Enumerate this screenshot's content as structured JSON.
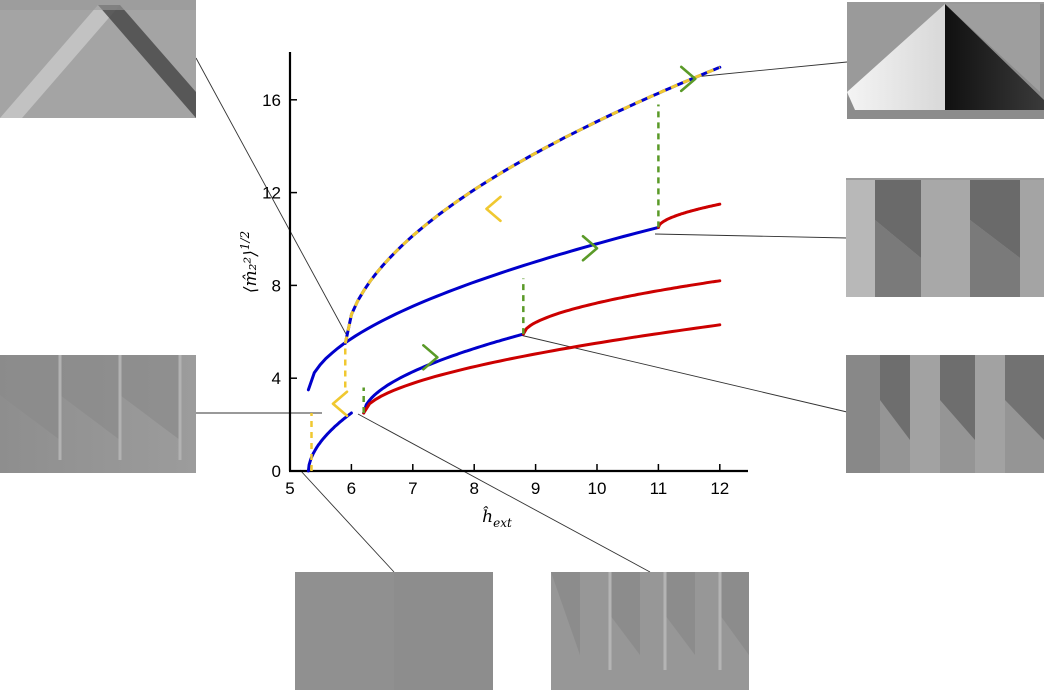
{
  "chart_data": {
    "type": "line",
    "xlabel": "ĥ",
    "xlabel_sub": "ext",
    "ylabel": "⟨m̂₂²⟩",
    "ylabel_sup": "1/2",
    "xlim": [
      5,
      12.5
    ],
    "ylim": [
      0,
      18
    ],
    "x_ticks": [
      5,
      6,
      7,
      8,
      9,
      10,
      11,
      12
    ],
    "y_ticks": [
      0,
      4,
      8,
      12,
      16
    ],
    "x_tick_labels": [
      "5",
      "6",
      "7",
      "8",
      "9",
      "10",
      "11",
      "12"
    ],
    "y_tick_labels": [
      "0",
      "4",
      "8",
      "12",
      "16"
    ],
    "grid": false,
    "legend": "none",
    "branches": [
      {
        "color": "#0000cc",
        "style": "solid",
        "x_start": 5.3,
        "x_end": 6.0,
        "y_start": 0,
        "y_end": 2.5
      },
      {
        "color": "#0000cc",
        "style": "solid",
        "x_start": 6.2,
        "x_end": 8.8,
        "y_start": 2.5,
        "y_end": 5.9
      },
      {
        "color": "#cc0000",
        "style": "solid",
        "x_start": 8.8,
        "x_end": 12.0,
        "y_start": 5.9,
        "y_end": 8.2
      },
      {
        "color": "#cc0000",
        "style": "solid",
        "x_start": 6.2,
        "x_end": 12.0,
        "y_start": 2.5,
        "y_end": 6.3
      },
      {
        "color": "#0000cc",
        "style": "solid",
        "x_start": 5.3,
        "x_end": 11.0,
        "y_start": 3.5,
        "y_end": 10.5
      },
      {
        "color": "#cc0000",
        "style": "solid",
        "x_start": 11.0,
        "x_end": 12.0,
        "y_start": 10.5,
        "y_end": 11.5
      },
      {
        "color": "#0000cc",
        "style": "solid",
        "x_start": 5.9,
        "x_end": 12.0,
        "y_start": 5.5,
        "y_end": 17.4
      }
    ],
    "transitions": [
      {
        "color": "#5a9a28",
        "style": "dashed",
        "x": 6.2,
        "y_from": 2.5,
        "y_to": 3.6
      },
      {
        "color": "#5a9a28",
        "style": "dashed",
        "x": 8.8,
        "y_from": 5.9,
        "y_to": 8.3
      },
      {
        "color": "#5a9a28",
        "style": "dashed",
        "x": 11.0,
        "y_from": 10.5,
        "y_to": 15.8
      },
      {
        "color": "#f0c830",
        "style": "dashed",
        "x": 5.35,
        "y_from": 0,
        "y_to": 2.5
      },
      {
        "color": "#f0c830",
        "style": "dashed",
        "x": 5.9,
        "y_from": 3.6,
        "y_to": 5.5
      }
    ],
    "arrows": [
      {
        "color": "#f0c830",
        "x": 8.2,
        "y": 11.3,
        "direction": "backward"
      },
      {
        "color": "#f0c830",
        "x": 5.7,
        "y": 2.9,
        "direction": "backward"
      },
      {
        "color": "#5a9a28",
        "x": 7.4,
        "y": 4.9,
        "direction": "forward"
      },
      {
        "color": "#5a9a28",
        "x": 10.0,
        "y": 9.6,
        "direction": "forward"
      },
      {
        "color": "#5a9a28",
        "x": 11.6,
        "y": 16.9,
        "direction": "forward"
      }
    ]
  },
  "colors": {
    "forward_sweep": "#5a9a28",
    "backward_sweep": "#f0c830",
    "stable_branch": "#0000cc",
    "unstable_branch": "#cc0000"
  },
  "thumbnails": [
    {
      "id": "thumb-top-left",
      "pattern": "single-fold-light"
    },
    {
      "id": "thumb-top-right",
      "pattern": "single-fold-high-contrast"
    },
    {
      "id": "thumb-mid-right-upper",
      "pattern": "two-folds"
    },
    {
      "id": "thumb-mid-right-lower",
      "pattern": "three-folds"
    },
    {
      "id": "thumb-mid-left",
      "pattern": "three-faint-folds"
    },
    {
      "id": "thumb-bottom-left",
      "pattern": "uniform"
    },
    {
      "id": "thumb-bottom-right",
      "pattern": "four-faint-folds"
    }
  ]
}
